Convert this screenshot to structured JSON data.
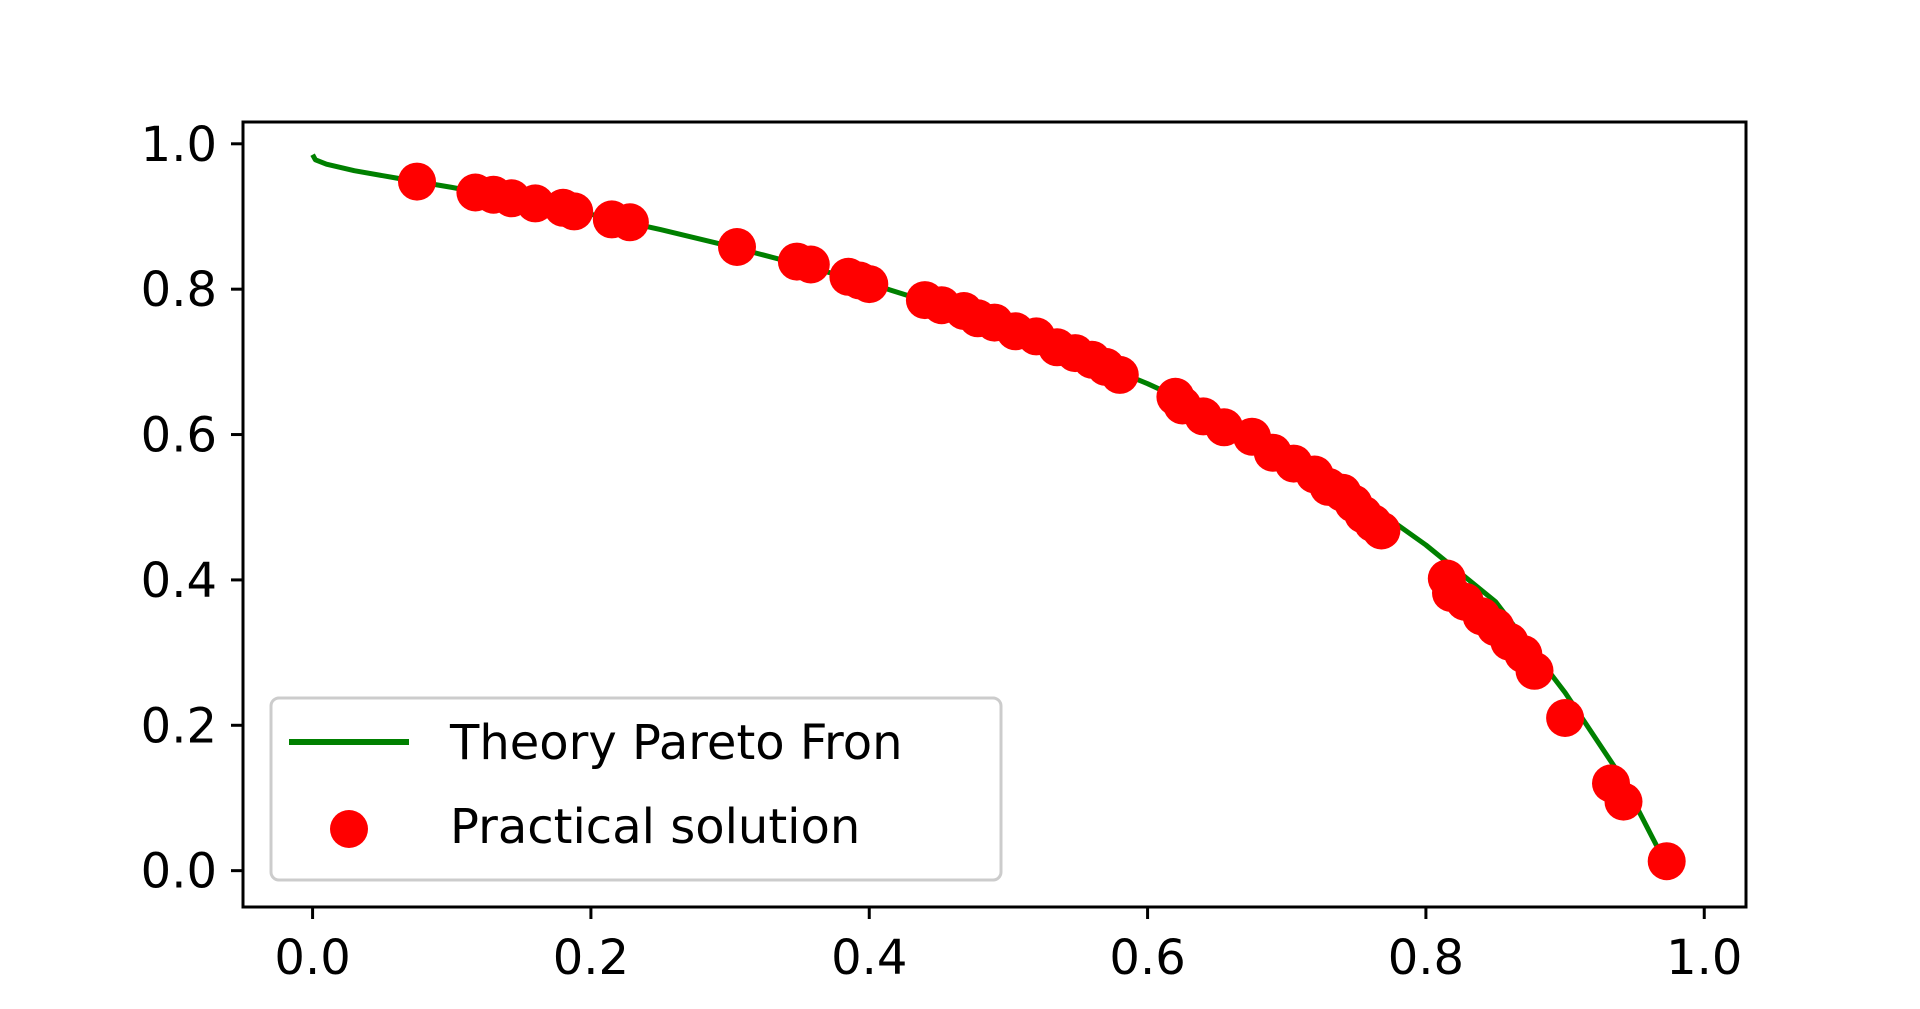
{
  "chart_data": {
    "type": "scatter",
    "title": "",
    "xlabel": "",
    "ylabel": "",
    "xlim": [
      -0.05,
      1.03
    ],
    "ylim": [
      -0.05,
      1.03
    ],
    "grid": false,
    "legend_position": "lower-left",
    "x_ticks": [
      0.0,
      0.2,
      0.4,
      0.6,
      0.8,
      1.0
    ],
    "x_tick_labels": [
      "0.0",
      "0.2",
      "0.4",
      "0.6",
      "0.8",
      "1.0"
    ],
    "y_ticks": [
      0.0,
      0.2,
      0.4,
      0.6,
      0.8,
      1.0
    ],
    "y_tick_labels": [
      "0.0",
      "0.2",
      "0.4",
      "0.6",
      "0.8",
      "1.0"
    ],
    "series": [
      {
        "name": "Theory Pareto Fron",
        "kind": "line",
        "color": "#008000",
        "x": [
          0.0,
          0.002,
          0.01,
          0.03,
          0.06,
          0.1,
          0.15,
          0.2,
          0.25,
          0.3,
          0.35,
          0.4,
          0.45,
          0.5,
          0.55,
          0.6,
          0.65,
          0.7,
          0.75,
          0.8,
          0.85,
          0.9,
          0.94,
          0.975
        ],
        "y": [
          0.985,
          0.978,
          0.972,
          0.963,
          0.953,
          0.94,
          0.922,
          0.903,
          0.882,
          0.859,
          0.834,
          0.808,
          0.778,
          0.745,
          0.709,
          0.67,
          0.626,
          0.575,
          0.516,
          0.448,
          0.37,
          0.245,
          0.13,
          0.0
        ]
      },
      {
        "name": "Practical solution",
        "kind": "scatter",
        "color": "#ff0000",
        "points": [
          [
            0.075,
            0.948
          ],
          [
            0.117,
            0.933
          ],
          [
            0.13,
            0.93
          ],
          [
            0.143,
            0.925
          ],
          [
            0.16,
            0.918
          ],
          [
            0.18,
            0.912
          ],
          [
            0.188,
            0.907
          ],
          [
            0.215,
            0.896
          ],
          [
            0.228,
            0.892
          ],
          [
            0.305,
            0.858
          ],
          [
            0.348,
            0.838
          ],
          [
            0.358,
            0.834
          ],
          [
            0.385,
            0.817
          ],
          [
            0.393,
            0.812
          ],
          [
            0.4,
            0.807
          ],
          [
            0.44,
            0.785
          ],
          [
            0.452,
            0.778
          ],
          [
            0.468,
            0.77
          ],
          [
            0.478,
            0.76
          ],
          [
            0.49,
            0.754
          ],
          [
            0.505,
            0.742
          ],
          [
            0.52,
            0.735
          ],
          [
            0.535,
            0.72
          ],
          [
            0.548,
            0.712
          ],
          [
            0.56,
            0.703
          ],
          [
            0.57,
            0.693
          ],
          [
            0.58,
            0.682
          ],
          [
            0.62,
            0.652
          ],
          [
            0.625,
            0.64
          ],
          [
            0.64,
            0.625
          ],
          [
            0.655,
            0.61
          ],
          [
            0.675,
            0.597
          ],
          [
            0.69,
            0.575
          ],
          [
            0.705,
            0.56
          ],
          [
            0.72,
            0.545
          ],
          [
            0.73,
            0.528
          ],
          [
            0.74,
            0.52
          ],
          [
            0.748,
            0.505
          ],
          [
            0.755,
            0.49
          ],
          [
            0.762,
            0.478
          ],
          [
            0.768,
            0.468
          ],
          [
            0.815,
            0.402
          ],
          [
            0.818,
            0.382
          ],
          [
            0.828,
            0.37
          ],
          [
            0.84,
            0.35
          ],
          [
            0.85,
            0.335
          ],
          [
            0.86,
            0.315
          ],
          [
            0.87,
            0.298
          ],
          [
            0.878,
            0.275
          ],
          [
            0.9,
            0.21
          ],
          [
            0.933,
            0.12
          ],
          [
            0.942,
            0.095
          ],
          [
            0.973,
            0.013
          ]
        ]
      }
    ],
    "legend": {
      "entries": [
        "Theory Pareto Fron",
        "Practical solution"
      ]
    }
  }
}
